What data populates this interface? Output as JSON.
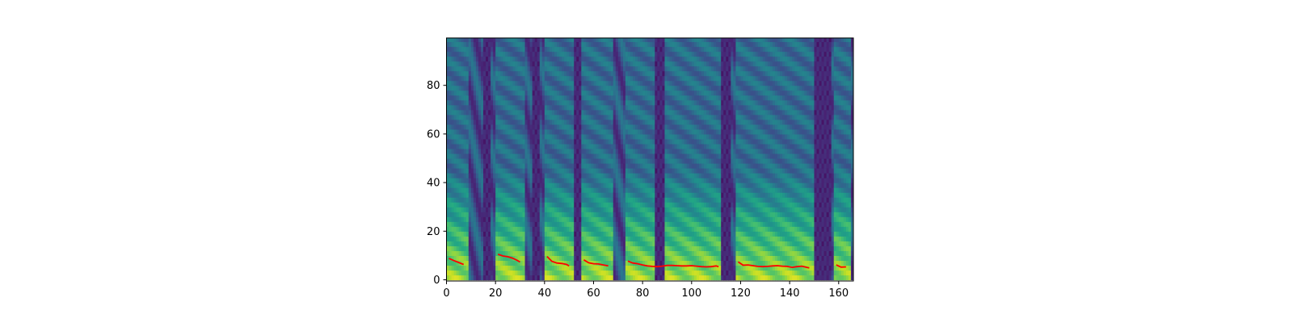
{
  "chart_data": {
    "type": "heatmap",
    "title": "",
    "xlabel": "",
    "ylabel": "",
    "colormap": "viridis",
    "xlim": [
      0,
      166
    ],
    "ylim": [
      -0.5,
      99.5
    ],
    "x_ticks": [
      0,
      20,
      40,
      60,
      80,
      100,
      120,
      140,
      160
    ],
    "y_ticks": [
      0,
      20,
      40,
      60,
      80
    ],
    "x_tick_labels": [
      "0",
      "20",
      "40",
      "60",
      "80",
      "100",
      "120",
      "140",
      "160"
    ],
    "y_tick_labels": [
      "0",
      "20",
      "40",
      "60",
      "80"
    ],
    "series": [
      {
        "type": "line",
        "color": "#ff0000",
        "segments": [
          [
            [
              1,
              8.8
            ],
            [
              3,
              7.9
            ],
            [
              5,
              7.1
            ],
            [
              7,
              6.3
            ]
          ],
          [
            [
              21,
              10.5
            ],
            [
              23,
              9.8
            ],
            [
              25,
              9.5
            ],
            [
              27,
              8.9
            ],
            [
              29,
              7.9
            ],
            [
              30,
              7.3
            ]
          ],
          [
            [
              41,
              9.6
            ],
            [
              43,
              7.6
            ],
            [
              45,
              6.9
            ],
            [
              47,
              6.7
            ],
            [
              49,
              6.3
            ],
            [
              50,
              5.7
            ]
          ],
          [
            [
              56,
              8.2
            ],
            [
              58,
              7.0
            ],
            [
              60,
              6.6
            ],
            [
              62,
              6.5
            ],
            [
              64,
              6.1
            ],
            [
              66,
              5.7
            ]
          ],
          [
            [
              74,
              7.7
            ],
            [
              76,
              6.9
            ],
            [
              78,
              6.6
            ],
            [
              80,
              6.1
            ],
            [
              82,
              5.7
            ],
            [
              84,
              5.5
            ],
            [
              86,
              5.4
            ],
            [
              88,
              5.6
            ],
            [
              90,
              5.9
            ],
            [
              92,
              5.9
            ],
            [
              94,
              5.8
            ],
            [
              96,
              5.7
            ],
            [
              98,
              5.7
            ],
            [
              100,
              5.8
            ],
            [
              102,
              5.6
            ],
            [
              104,
              5.4
            ],
            [
              106,
              5.3
            ],
            [
              108,
              5.4
            ],
            [
              110,
              5.7
            ],
            [
              111,
              5.4
            ]
          ],
          [
            [
              119,
              7.4
            ],
            [
              121,
              6.0
            ],
            [
              123,
              6.1
            ],
            [
              125,
              5.8
            ],
            [
              127,
              5.5
            ],
            [
              129,
              5.4
            ],
            [
              131,
              5.5
            ],
            [
              133,
              5.7
            ],
            [
              135,
              5.8
            ],
            [
              137,
              5.6
            ],
            [
              139,
              5.5
            ],
            [
              141,
              5.1
            ],
            [
              143,
              5.4
            ],
            [
              145,
              5.6
            ],
            [
              147,
              5.1
            ],
            [
              148,
              4.9
            ]
          ],
          [
            [
              159,
              6.1
            ],
            [
              161,
              5.2
            ],
            [
              163,
              5.3
            ]
          ]
        ]
      }
    ]
  }
}
